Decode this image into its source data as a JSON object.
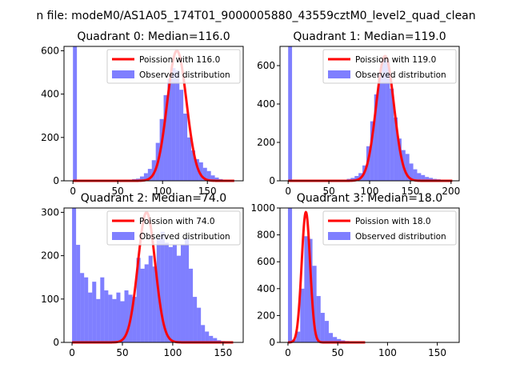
{
  "figure": {
    "suptitle": "n file: modeM0/AS1A05_174T01_9000005880_43559cztM0_level2_quad_clean"
  },
  "colors": {
    "poisson": "#ff0000",
    "observed": "#0000ff",
    "background": "#ffffff",
    "axes": "#000000"
  },
  "chart_data": [
    {
      "type": "bar",
      "title": "Quadrant 0: Median=116.0",
      "xlabel": "",
      "ylabel": "",
      "xlim": [
        -10,
        190
      ],
      "ylim": [
        0,
        620
      ],
      "xticks": [
        0,
        50,
        100,
        150
      ],
      "yticks": [
        0,
        200,
        400,
        600
      ],
      "grid": false,
      "legend_position": "upper right",
      "series": [
        {
          "name": "Poission with 116.0",
          "kind": "line",
          "lambda": 116.0
        },
        {
          "name": "Observed distribution",
          "kind": "histogram",
          "bin_width": 4.4,
          "x": [
            0,
            4.4,
            8.8,
            13.2,
            17.6,
            22.0,
            26.4,
            30.8,
            35.2,
            39.6,
            44.0,
            48.4,
            52.8,
            57.2,
            61.6,
            66.0,
            70.4,
            74.8,
            79.2,
            83.6,
            88.0,
            92.4,
            96.8,
            101.2,
            105.6,
            110.0,
            114.4,
            118.8,
            123.2,
            127.6,
            132.0,
            136.4,
            140.8,
            145.2,
            149.6,
            154.0,
            158.4,
            162.8,
            167.2,
            171.6,
            176.0
          ],
          "values": [
            620,
            0,
            0,
            0,
            0,
            0,
            0,
            0,
            0,
            0,
            0,
            0,
            0,
            5,
            5,
            8,
            10,
            20,
            35,
            55,
            95,
            175,
            285,
            395,
            470,
            520,
            510,
            420,
            310,
            200,
            140,
            100,
            85,
            60,
            45,
            25,
            15,
            8,
            5,
            3,
            2
          ]
        }
      ]
    },
    {
      "type": "bar",
      "title": "Quadrant 1: Median=119.0",
      "xlabel": "",
      "ylabel": "",
      "xlim": [
        -10,
        210
      ],
      "ylim": [
        0,
        700
      ],
      "xticks": [
        0,
        50,
        100,
        150,
        200
      ],
      "yticks": [
        0,
        200,
        400,
        600
      ],
      "grid": false,
      "legend_position": "upper right",
      "series": [
        {
          "name": "Poission with 119.0",
          "kind": "line",
          "lambda": 119.0
        },
        {
          "name": "Observed distribution",
          "kind": "histogram",
          "bin_width": 4.8,
          "x": [
            0,
            4.8,
            9.6,
            14.4,
            19.2,
            24.0,
            28.8,
            33.6,
            38.4,
            43.2,
            48.0,
            52.8,
            57.6,
            62.4,
            67.2,
            72.0,
            76.8,
            81.6,
            86.4,
            91.2,
            96.0,
            100.8,
            105.6,
            110.4,
            115.2,
            120.0,
            124.8,
            129.6,
            134.4,
            139.2,
            144.0,
            148.8,
            153.6,
            158.4,
            163.2,
            168.0,
            172.8,
            177.6,
            182.4,
            187.2,
            192.0,
            196.8
          ],
          "values": [
            700,
            0,
            0,
            0,
            0,
            0,
            0,
            0,
            0,
            0,
            0,
            0,
            0,
            0,
            5,
            10,
            15,
            25,
            40,
            80,
            180,
            310,
            450,
            560,
            640,
            620,
            480,
            330,
            220,
            160,
            140,
            90,
            60,
            40,
            30,
            20,
            15,
            10,
            8,
            5,
            3,
            2
          ]
        }
      ]
    },
    {
      "type": "bar",
      "title": "Quadrant 2: Median=74.0",
      "xlabel": "",
      "ylabel": "",
      "xlim": [
        -8,
        170
      ],
      "ylim": [
        0,
        310
      ],
      "xticks": [
        0,
        50,
        100,
        150
      ],
      "yticks": [
        0,
        100,
        200,
        300
      ],
      "grid": false,
      "legend_position": "upper right",
      "series": [
        {
          "name": "Poission with 74.0",
          "kind": "line",
          "lambda": 74.0
        },
        {
          "name": "Observed distribution",
          "kind": "histogram",
          "bin_width": 4.0,
          "x": [
            0,
            4,
            8,
            12,
            16,
            20,
            24,
            28,
            32,
            36,
            40,
            44,
            48,
            52,
            56,
            60,
            64,
            68,
            72,
            76,
            80,
            84,
            88,
            92,
            96,
            100,
            104,
            108,
            112,
            116,
            120,
            124,
            128,
            132,
            136,
            140,
            144,
            148,
            152,
            156
          ],
          "values": [
            310,
            225,
            160,
            150,
            115,
            140,
            100,
            150,
            120,
            110,
            100,
            115,
            95,
            120,
            110,
            105,
            195,
            170,
            180,
            200,
            175,
            240,
            255,
            230,
            220,
            225,
            200,
            225,
            240,
            170,
            105,
            80,
            40,
            25,
            15,
            10,
            5,
            3,
            2,
            1
          ]
        }
      ]
    },
    {
      "type": "bar",
      "title": "Quadrant 3: Median=18.0",
      "xlabel": "",
      "ylabel": "",
      "xlim": [
        -8,
        172
      ],
      "ylim": [
        0,
        1000
      ],
      "xticks": [
        0,
        50,
        100,
        150
      ],
      "yticks": [
        0,
        200,
        400,
        600,
        800,
        1000
      ],
      "grid": false,
      "legend_position": "upper right",
      "series": [
        {
          "name": "Poission with 18.0",
          "kind": "line",
          "lambda": 18.0
        },
        {
          "name": "Observed distribution",
          "kind": "histogram",
          "bin_width": 4.1,
          "x": [
            0,
            4.1,
            8.2,
            12.3,
            16.4,
            20.5,
            24.6,
            28.7,
            32.8,
            36.9,
            41.0,
            45.1,
            49.2,
            53.3,
            57.4,
            61.5,
            65.6,
            69.7,
            73.8
          ],
          "values": [
            1000,
            20,
            80,
            400,
            790,
            770,
            570,
            345,
            220,
            160,
            70,
            40,
            25,
            15,
            10,
            5,
            3,
            2,
            1
          ]
        }
      ]
    }
  ],
  "panels": [
    {
      "title": "Quadrant 0: Median=116.0",
      "legend": [
        "Poission with 116.0",
        "Observed distribution"
      ],
      "xticklabels": [
        "0",
        "50",
        "100",
        "150"
      ],
      "yticklabels": [
        "0",
        "200",
        "400",
        "600"
      ]
    },
    {
      "title": "Quadrant 1: Median=119.0",
      "legend": [
        "Poission with 119.0",
        "Observed distribution"
      ],
      "xticklabels": [
        "0",
        "50",
        "100",
        "150",
        "200"
      ],
      "yticklabels": [
        "0",
        "200",
        "400",
        "600"
      ]
    },
    {
      "title": "Quadrant 2: Median=74.0",
      "legend": [
        "Poission with 74.0",
        "Observed distribution"
      ],
      "xticklabels": [
        "0",
        "50",
        "100",
        "150"
      ],
      "yticklabels": [
        "0",
        "100",
        "200",
        "300"
      ]
    },
    {
      "title": "Quadrant 3: Median=18.0",
      "legend": [
        "Poission with 18.0",
        "Observed distribution"
      ],
      "xticklabels": [
        "0",
        "50",
        "100",
        "150"
      ],
      "yticklabels": [
        "0",
        "200",
        "400",
        "600",
        "800",
        "1000"
      ]
    }
  ]
}
